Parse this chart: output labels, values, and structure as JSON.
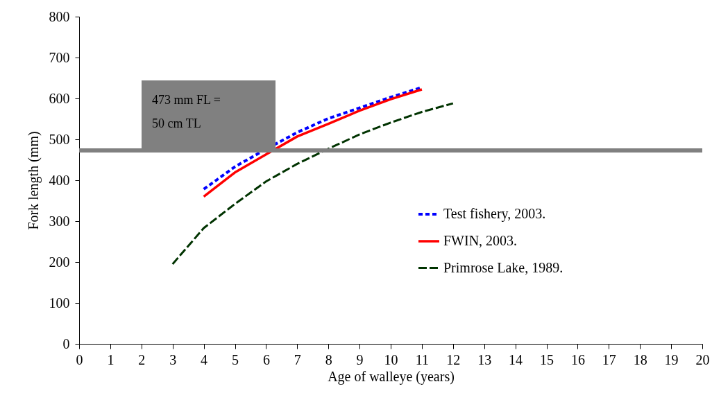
{
  "chart_data": {
    "type": "line",
    "xlabel": "Age of walleye (years)",
    "ylabel": "Fork length (mm)",
    "xlim": [
      0,
      20
    ],
    "xticks": [
      0,
      1,
      2,
      3,
      4,
      5,
      6,
      7,
      8,
      9,
      10,
      11,
      12,
      13,
      14,
      15,
      16,
      17,
      18,
      19,
      20
    ],
    "ylim": [
      0,
      800
    ],
    "yticks": [
      0,
      100,
      200,
      300,
      400,
      500,
      600,
      700,
      800
    ],
    "grid": false,
    "legend": "right",
    "series": [
      {
        "name": "Test fishery, 2003.",
        "color": "#0000ff",
        "line_style": "dotted",
        "x": [
          4,
          5,
          6,
          7,
          8,
          9,
          10,
          11
        ],
        "values": [
          378,
          433,
          476,
          517,
          551,
          577,
          603,
          627
        ]
      },
      {
        "name": "FWIN, 2003.",
        "color": "#ff0000",
        "line_style": "solid",
        "x": [
          4,
          5,
          6,
          7,
          8,
          9,
          10,
          11
        ],
        "values": [
          360,
          419,
          463,
          507,
          538,
          570,
          598,
          622
        ]
      },
      {
        "name": "Primrose Lake, 1989.",
        "color": "#003300",
        "line_style": "dashed",
        "x": [
          3,
          4,
          5,
          6,
          7,
          8,
          9,
          10,
          11,
          12
        ],
        "values": [
          195,
          283,
          342,
          397,
          440,
          477,
          512,
          541,
          567,
          588
        ]
      }
    ],
    "ref_lines": [
      {
        "axis": "y",
        "value": 473,
        "label": "473 mm FL =\n50 cm TL",
        "color": "#808080"
      }
    ]
  }
}
